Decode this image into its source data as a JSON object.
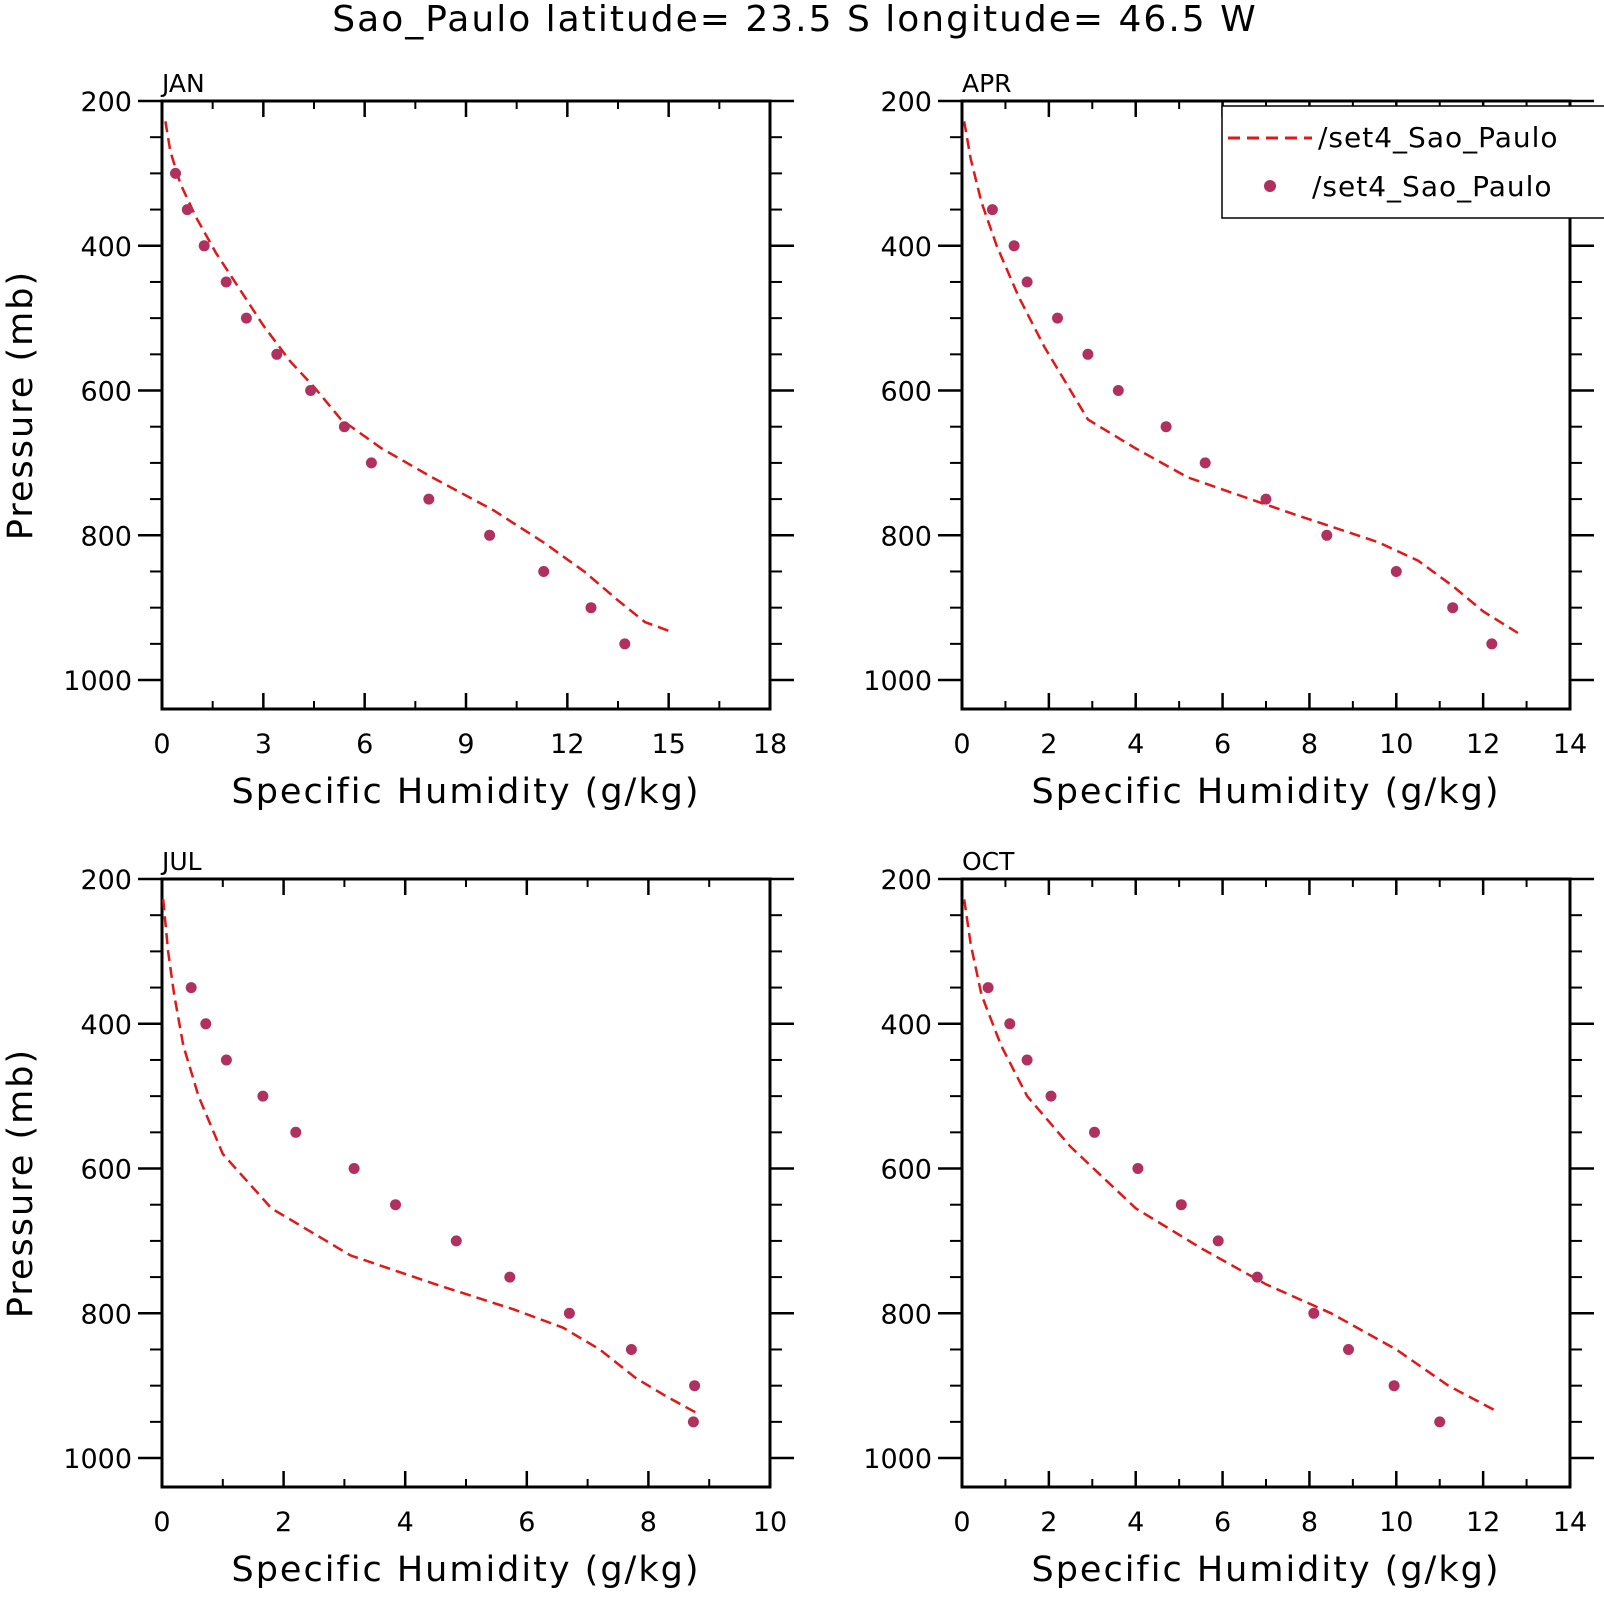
{
  "title": "Sao_Paulo  latitude= 23.5 S longitude= 46.5 W",
  "colors": {
    "model_line": "#e01818",
    "obs_marker": "#b03060",
    "axes": "#000000"
  },
  "legend": {
    "placement": "top-right",
    "entries": [
      {
        "label": "/set4_Sao_Paulo",
        "style": "dashed-line"
      },
      {
        "label": "/set4_Sao_Paulo",
        "style": "dot"
      }
    ]
  },
  "chart_data": [
    {
      "type": "line",
      "title": "JAN",
      "xlabel": "Specific Humidity (g/kg)",
      "ylabel": "Pressure (mb)",
      "xlim": [
        0,
        18
      ],
      "ylim": [
        200,
        1040
      ],
      "y_reversed": true,
      "xticks": [
        "0",
        "3",
        "6",
        "9",
        "12",
        "15",
        "18"
      ],
      "yticks": [
        "200",
        "400",
        "600",
        "800",
        "1000"
      ],
      "legend": false,
      "series": [
        {
          "style": "dashed-line",
          "x": [
            0.1,
            0.25,
            0.55,
            1.0,
            1.6,
            2.3,
            3.0,
            3.8,
            4.5,
            5.3,
            6.5,
            8.0,
            9.8,
            11.3,
            12.5,
            13.5,
            14.3,
            15.0
          ],
          "y": [
            228,
            270,
            315,
            360,
            410,
            460,
            510,
            560,
            595,
            640,
            680,
            720,
            765,
            810,
            850,
            890,
            920,
            932
          ]
        },
        {
          "style": "dot",
          "x": [
            0.4,
            0.75,
            1.25,
            1.9,
            2.5,
            3.4,
            4.4,
            5.4,
            6.2,
            7.9,
            9.7,
            11.3,
            12.7,
            13.7
          ],
          "y": [
            300,
            350,
            400,
            450,
            500,
            550,
            600,
            650,
            700,
            750,
            800,
            850,
            900,
            950
          ]
        }
      ]
    },
    {
      "type": "line",
      "title": "APR",
      "xlabel": "Specific Humidity (g/kg)",
      "ylabel": "",
      "xlim": [
        0,
        14
      ],
      "ylim": [
        200,
        1040
      ],
      "y_reversed": true,
      "xticks": [
        "0",
        "2",
        "4",
        "6",
        "8",
        "10",
        "12",
        "14"
      ],
      "yticks": [
        "200",
        "400",
        "600",
        "800",
        "1000"
      ],
      "legend": true,
      "series": [
        {
          "style": "dashed-line",
          "x": [
            0.05,
            0.2,
            0.45,
            0.8,
            1.3,
            1.9,
            2.9,
            4.0,
            5.2,
            6.4,
            7.6,
            8.6,
            9.6,
            10.5,
            11.3,
            12.0,
            12.8
          ],
          "y": [
            228,
            280,
            340,
            400,
            470,
            540,
            640,
            680,
            720,
            745,
            770,
            790,
            810,
            835,
            870,
            905,
            935
          ]
        },
        {
          "style": "dot",
          "x": [
            0.7,
            1.2,
            1.5,
            2.2,
            2.9,
            3.6,
            4.7,
            5.6,
            7.0,
            8.4,
            10.0,
            11.3,
            12.2
          ],
          "y": [
            350,
            400,
            450,
            500,
            550,
            600,
            650,
            700,
            750,
            800,
            850,
            900,
            950
          ]
        }
      ]
    },
    {
      "type": "line",
      "title": "JUL",
      "xlabel": "Specific Humidity (g/kg)",
      "ylabel": "Pressure (mb)",
      "xlim": [
        0,
        10
      ],
      "ylim": [
        200,
        1040
      ],
      "y_reversed": true,
      "xticks": [
        "0",
        "2",
        "4",
        "6",
        "8",
        "10"
      ],
      "yticks": [
        "200",
        "400",
        "600",
        "800",
        "1000"
      ],
      "legend": false,
      "series": [
        {
          "style": "dashed-line",
          "x": [
            0.02,
            0.1,
            0.2,
            0.35,
            0.6,
            1.0,
            1.8,
            3.1,
            4.5,
            5.8,
            6.6,
            7.2,
            7.8,
            8.3,
            8.8
          ],
          "y": [
            228,
            300,
            360,
            430,
            500,
            580,
            655,
            720,
            760,
            795,
            820,
            850,
            890,
            915,
            938
          ]
        },
        {
          "style": "dot",
          "x": [
            0.48,
            0.72,
            1.06,
            1.66,
            2.2,
            3.16,
            3.84,
            4.84,
            5.72,
            6.7,
            7.72,
            8.76,
            8.74
          ],
          "y": [
            350,
            400,
            450,
            500,
            550,
            600,
            650,
            700,
            750,
            800,
            850,
            900,
            950
          ]
        }
      ]
    },
    {
      "type": "line",
      "title": "OCT",
      "xlabel": "Specific Humidity (g/kg)",
      "ylabel": "",
      "xlim": [
        0,
        14
      ],
      "ylim": [
        200,
        1040
      ],
      "y_reversed": true,
      "xticks": [
        "0",
        "2",
        "4",
        "6",
        "8",
        "10",
        "12",
        "14"
      ],
      "yticks": [
        "200",
        "400",
        "600",
        "800",
        "1000"
      ],
      "legend": false,
      "series": [
        {
          "style": "dashed-line",
          "x": [
            0.05,
            0.2,
            0.45,
            0.9,
            1.5,
            2.5,
            4.0,
            5.5,
            7.0,
            8.5,
            10.0,
            11.2,
            12.3
          ],
          "y": [
            228,
            290,
            360,
            430,
            500,
            570,
            655,
            710,
            760,
            800,
            850,
            900,
            935
          ]
        },
        {
          "style": "dot",
          "x": [
            0.6,
            1.1,
            1.5,
            2.05,
            3.05,
            4.05,
            5.05,
            5.9,
            6.8,
            8.1,
            8.9,
            9.95,
            11.0
          ],
          "y": [
            350,
            400,
            450,
            500,
            550,
            600,
            650,
            700,
            750,
            800,
            850,
            900,
            950
          ]
        }
      ]
    }
  ]
}
